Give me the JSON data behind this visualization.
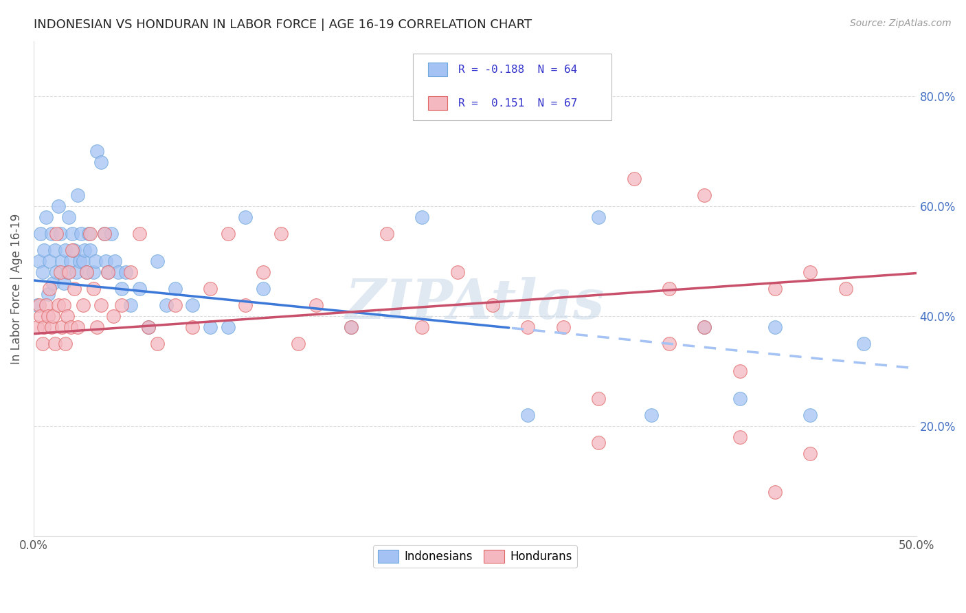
{
  "title": "INDONESIAN VS HONDURAN IN LABOR FORCE | AGE 16-19 CORRELATION CHART",
  "source": "Source: ZipAtlas.com",
  "ylabel": "In Labor Force | Age 16-19",
  "xlim": [
    0.0,
    0.5
  ],
  "ylim": [
    0.0,
    0.9
  ],
  "xticks": [
    0.0,
    0.1,
    0.2,
    0.3,
    0.4,
    0.5
  ],
  "xticklabels": [
    "0.0%",
    "",
    "",
    "",
    "",
    "50.0%"
  ],
  "yticks_right": [
    0.2,
    0.4,
    0.6,
    0.8
  ],
  "yticklabels_right": [
    "20.0%",
    "40.0%",
    "60.0%",
    "80.0%"
  ],
  "indonesian_scatter_color": "#a4c2f4",
  "indonesian_edge_color": "#6fa8dc",
  "honduran_scatter_color": "#f4b8c1",
  "honduran_edge_color": "#e06666",
  "indonesian_line_color": "#3c78d8",
  "honduran_line_color": "#c9506a",
  "indonesian_dashed_color": "#a4c2f4",
  "legend_text_color": "#3333cc",
  "right_axis_color": "#4472c4",
  "background_color": "#ffffff",
  "grid_color": "#dddddd",
  "watermark_text": "ZIPAtlas",
  "watermark_color": "#c8d8e8",
  "indonesian_R": -0.188,
  "indonesian_N": 64,
  "honduran_R": 0.151,
  "honduran_N": 67,
  "seed": 12345,
  "indonesian_x": [
    0.002,
    0.003,
    0.004,
    0.005,
    0.006,
    0.007,
    0.008,
    0.009,
    0.01,
    0.011,
    0.012,
    0.013,
    0.014,
    0.015,
    0.016,
    0.017,
    0.018,
    0.019,
    0.02,
    0.021,
    0.022,
    0.023,
    0.024,
    0.025,
    0.026,
    0.027,
    0.028,
    0.029,
    0.03,
    0.031,
    0.032,
    0.034,
    0.035,
    0.036,
    0.038,
    0.04,
    0.041,
    0.042,
    0.044,
    0.046,
    0.048,
    0.05,
    0.052,
    0.055,
    0.06,
    0.065,
    0.07,
    0.075,
    0.08,
    0.09,
    0.1,
    0.11,
    0.12,
    0.13,
    0.18,
    0.22,
    0.28,
    0.32,
    0.35,
    0.38,
    0.4,
    0.42,
    0.44,
    0.47
  ],
  "indonesian_y": [
    0.42,
    0.5,
    0.55,
    0.48,
    0.52,
    0.58,
    0.44,
    0.5,
    0.55,
    0.46,
    0.52,
    0.48,
    0.6,
    0.55,
    0.5,
    0.46,
    0.52,
    0.48,
    0.58,
    0.5,
    0.55,
    0.52,
    0.48,
    0.62,
    0.5,
    0.55,
    0.5,
    0.52,
    0.48,
    0.55,
    0.52,
    0.48,
    0.5,
    0.7,
    0.68,
    0.55,
    0.5,
    0.48,
    0.55,
    0.5,
    0.48,
    0.45,
    0.48,
    0.42,
    0.45,
    0.38,
    0.5,
    0.42,
    0.45,
    0.42,
    0.38,
    0.38,
    0.58,
    0.45,
    0.38,
    0.58,
    0.22,
    0.58,
    0.22,
    0.38,
    0.25,
    0.38,
    0.22,
    0.35
  ],
  "honduran_x": [
    0.002,
    0.003,
    0.004,
    0.005,
    0.006,
    0.007,
    0.008,
    0.009,
    0.01,
    0.011,
    0.012,
    0.013,
    0.014,
    0.015,
    0.016,
    0.017,
    0.018,
    0.019,
    0.02,
    0.021,
    0.022,
    0.023,
    0.025,
    0.028,
    0.03,
    0.032,
    0.034,
    0.036,
    0.038,
    0.04,
    0.042,
    0.045,
    0.05,
    0.055,
    0.06,
    0.065,
    0.07,
    0.08,
    0.09,
    0.1,
    0.11,
    0.12,
    0.13,
    0.14,
    0.15,
    0.16,
    0.18,
    0.2,
    0.22,
    0.24,
    0.26,
    0.28,
    0.3,
    0.32,
    0.34,
    0.36,
    0.38,
    0.4,
    0.42,
    0.44,
    0.46,
    0.32,
    0.36,
    0.38,
    0.4,
    0.42,
    0.44
  ],
  "honduran_y": [
    0.38,
    0.42,
    0.4,
    0.35,
    0.38,
    0.42,
    0.4,
    0.45,
    0.38,
    0.4,
    0.35,
    0.55,
    0.42,
    0.48,
    0.38,
    0.42,
    0.35,
    0.4,
    0.48,
    0.38,
    0.52,
    0.45,
    0.38,
    0.42,
    0.48,
    0.55,
    0.45,
    0.38,
    0.42,
    0.55,
    0.48,
    0.4,
    0.42,
    0.48,
    0.55,
    0.38,
    0.35,
    0.42,
    0.38,
    0.45,
    0.55,
    0.42,
    0.48,
    0.55,
    0.35,
    0.42,
    0.38,
    0.55,
    0.38,
    0.48,
    0.42,
    0.38,
    0.38,
    0.25,
    0.65,
    0.45,
    0.62,
    0.3,
    0.45,
    0.48,
    0.45,
    0.17,
    0.35,
    0.38,
    0.18,
    0.08,
    0.15
  ]
}
